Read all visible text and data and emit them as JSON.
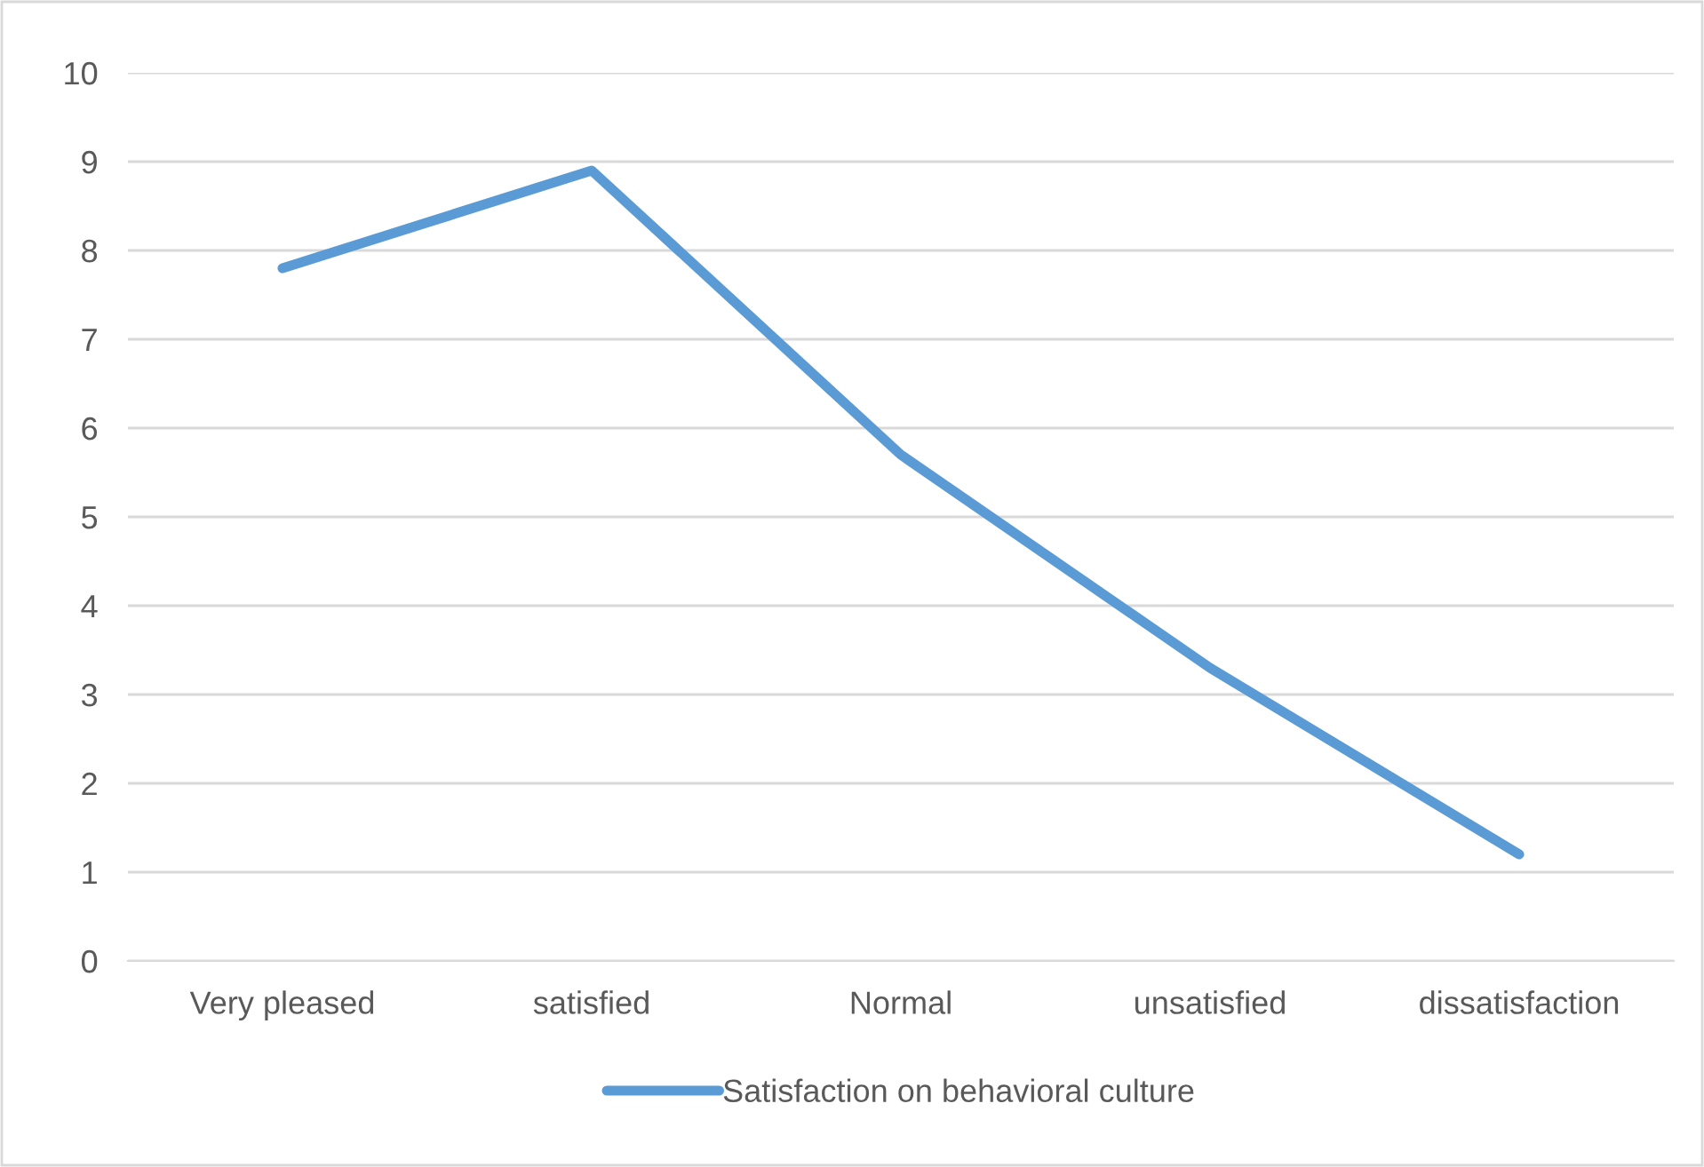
{
  "chart_data": {
    "type": "line",
    "categories": [
      "Very pleased",
      "satisfied",
      "Normal",
      "unsatisfied",
      "dissatisfaction"
    ],
    "series": [
      {
        "name": "Satisfaction on behavioral culture",
        "color": "#5b9bd5",
        "values": [
          7.8,
          8.9,
          5.7,
          3.3,
          1.2
        ]
      }
    ],
    "ylim": [
      0,
      10
    ],
    "yticks": [
      0,
      1,
      2,
      3,
      4,
      5,
      6,
      7,
      8,
      9,
      10
    ],
    "grid": "y",
    "legend": "bottom",
    "marker": "none",
    "line_style": "solid"
  }
}
